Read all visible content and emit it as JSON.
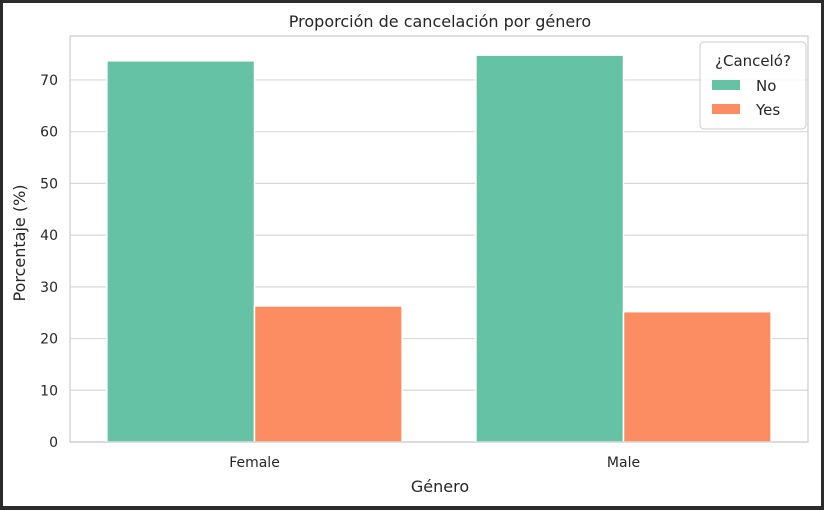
{
  "chart_data": {
    "type": "bar",
    "title": "Proporción de cancelación por género",
    "xlabel": "Género",
    "ylabel": "Porcentaje (%)",
    "categories": [
      "Female",
      "Male"
    ],
    "series": [
      {
        "name": "No",
        "values": [
          73.7,
          74.8
        ],
        "color": "#66c2a5"
      },
      {
        "name": "Yes",
        "values": [
          26.3,
          25.2
        ],
        "color": "#fc8d62"
      }
    ],
    "ylim": [
      0,
      78.5
    ],
    "yticks": [
      0,
      10,
      20,
      30,
      40,
      50,
      60,
      70
    ],
    "grid": true,
    "legend": {
      "title": "¿Canceló?",
      "position": "top-right"
    }
  }
}
